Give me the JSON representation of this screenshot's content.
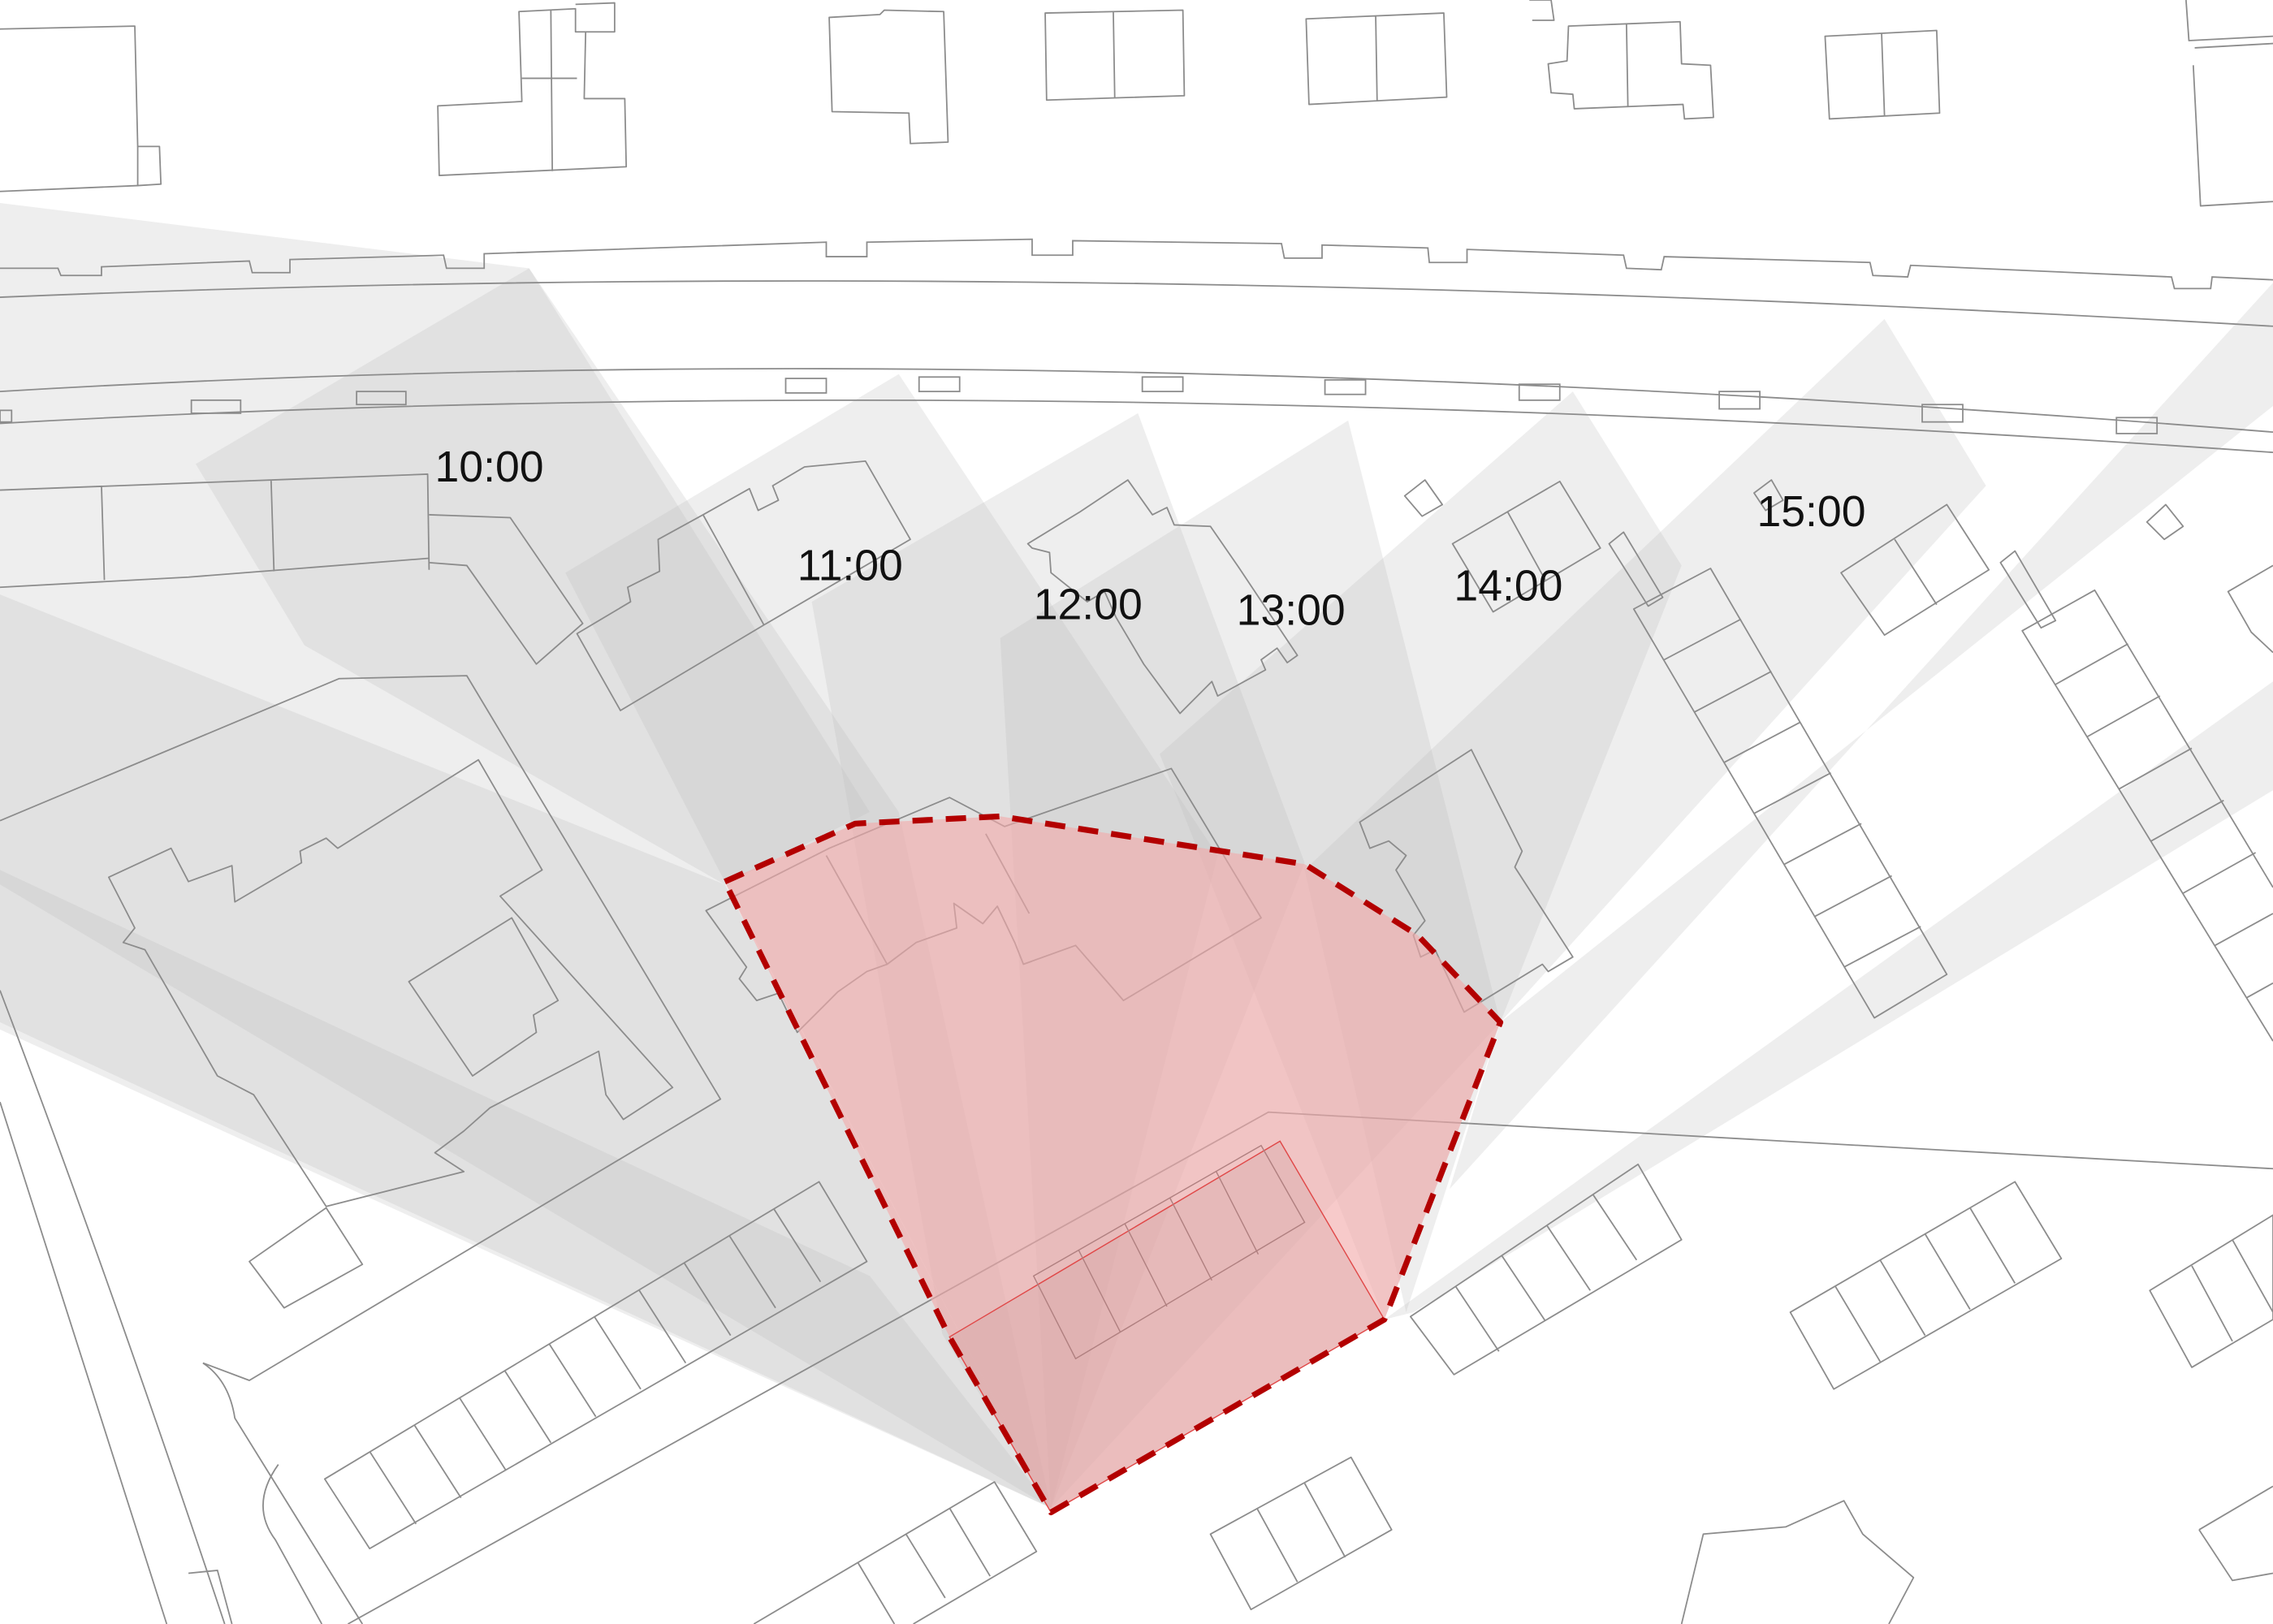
{
  "map": {
    "time_labels": [
      "10:00",
      "11:00",
      "12:00",
      "13:00",
      "14:00",
      "15:00"
    ]
  },
  "colors": {
    "shadow": "#bdbdbd",
    "site_outline": "#b30000",
    "site_fill": "#f2a9a9",
    "building_stroke": "#8c8c8c"
  }
}
